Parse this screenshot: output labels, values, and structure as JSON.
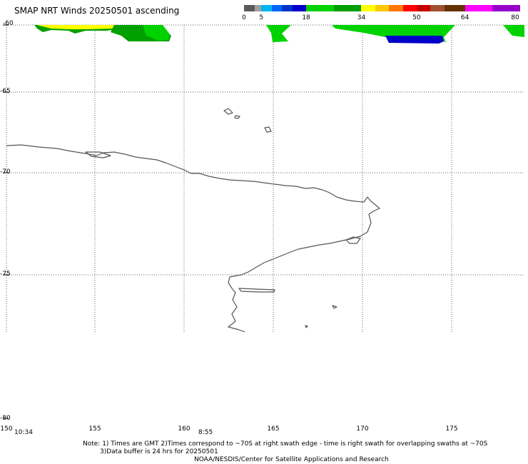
{
  "title": "SMAP NRT Winds 20250501 ascending",
  "colorbar": {
    "segments": [
      {
        "from": 0,
        "to": 3,
        "color": "#5a5a5a"
      },
      {
        "from": 3,
        "to": 5,
        "color": "#a0a0a0"
      },
      {
        "from": 5,
        "to": 8,
        "color": "#00b4f0"
      },
      {
        "from": 8,
        "to": 11,
        "color": "#0064ff"
      },
      {
        "from": 11,
        "to": 14,
        "color": "#0032c8"
      },
      {
        "from": 14,
        "to": 18,
        "color": "#0000c8"
      },
      {
        "from": 18,
        "to": 26,
        "color": "#00d200"
      },
      {
        "from": 26,
        "to": 34,
        "color": "#00a000"
      },
      {
        "from": 34,
        "to": 38,
        "color": "#ffff00"
      },
      {
        "from": 38,
        "to": 42,
        "color": "#ffc800"
      },
      {
        "from": 42,
        "to": 46,
        "color": "#ff7800"
      },
      {
        "from": 46,
        "to": 50,
        "color": "#ff0000"
      },
      {
        "from": 50,
        "to": 54,
        "color": "#c80000"
      },
      {
        "from": 54,
        "to": 58,
        "color": "#a05032"
      },
      {
        "from": 58,
        "to": 64,
        "color": "#643200"
      },
      {
        "from": 64,
        "to": 72,
        "color": "#ff00ff"
      },
      {
        "from": 72,
        "to": 80,
        "color": "#9600c8"
      }
    ],
    "labels": [
      "0",
      "5",
      "18",
      "34",
      "50",
      "64",
      "80"
    ]
  },
  "axes": {
    "lat_labels": [
      "-60",
      "-65",
      "-70",
      "-75",
      "-80"
    ],
    "lon_labels": [
      "150",
      "155",
      "160",
      "165",
      "170",
      "175"
    ]
  },
  "times": [
    "10:34",
    "8:55"
  ],
  "notes": {
    "line1": "Note: 1) Times are GMT 2)Times correspond to ~70S at right swath edge - time is right swath for overlapping swaths at ~70S",
    "line2": "3)Data buffer is 24 hrs for 20250501",
    "line3": "NOAA/NESDIS/Center for Satellite Applications and Research"
  }
}
